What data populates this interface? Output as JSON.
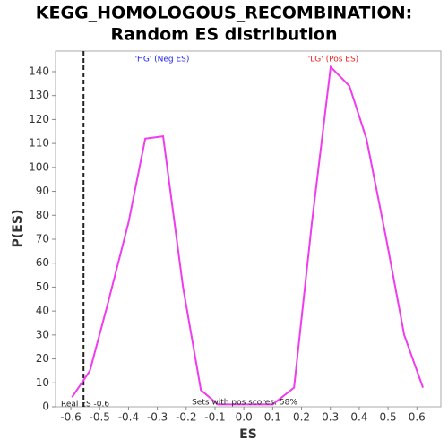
{
  "chart_data": {
    "type": "line",
    "title": "KEGG_HOMOLOGOUS_RECOMBINATION:",
    "subtitle": "Random ES distribution",
    "x_label": "ES",
    "y_label": "P(ES)",
    "x": [
      -0.596,
      -0.534,
      -0.472,
      -0.4,
      -0.342,
      -0.28,
      -0.211,
      -0.149,
      -0.09,
      0.1,
      0.174,
      0.236,
      0.301,
      0.366,
      0.425,
      0.494,
      0.556,
      0.621
    ],
    "series": [
      {
        "name": "P(ES)",
        "color": "#ee3cee",
        "values": [
          4,
          15,
          43,
          77,
          112,
          113,
          50,
          7,
          1,
          1,
          8,
          77,
          142,
          134,
          112,
          70,
          30,
          8
        ]
      }
    ],
    "xlim": [
      -0.653,
      0.683
    ],
    "ylim": [
      0,
      148.6
    ],
    "xticks": [
      -0.6,
      -0.5,
      -0.4,
      -0.3,
      -0.2,
      -0.1,
      {
        "value": 0,
        "label": "0.0"
      },
      0.1,
      0.2,
      0.3,
      0.4,
      0.5,
      0.6
    ],
    "yticks": [
      0,
      10,
      20,
      30,
      40,
      50,
      60,
      70,
      80,
      90,
      100,
      110,
      120,
      130,
      140
    ],
    "real_es": -0.556,
    "real_es_label": "Real ES -0.6",
    "neg_label": "'HG' (Neg ES)",
    "pos_label": "'LG' (Pos ES)",
    "pos_scores_label": "Sets with pos scores: 58%"
  }
}
